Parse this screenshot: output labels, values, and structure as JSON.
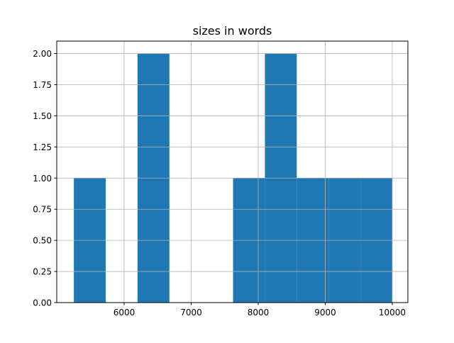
{
  "chart_data": {
    "type": "bar",
    "title": "sizes in words",
    "xlabel": "",
    "ylabel": "",
    "bin_edges": [
      5250,
      5725,
      6200,
      6675,
      7150,
      7625,
      8100,
      8575,
      9050,
      9525,
      10000
    ],
    "values": [
      1,
      0,
      2,
      0,
      0,
      1,
      2,
      1,
      1,
      1
    ],
    "xlim": [
      4995,
      10233
    ],
    "ylim": [
      0,
      2.1
    ],
    "xticks": [
      6000,
      7000,
      8000,
      9000,
      10000
    ],
    "xtick_labels": [
      "6000",
      "7000",
      "8000",
      "9000",
      "10000"
    ],
    "yticks": [
      0,
      0.25,
      0.5,
      0.75,
      1.0,
      1.25,
      1.5,
      1.75,
      2.0
    ],
    "ytick_labels": [
      "0.00",
      "0.25",
      "0.50",
      "0.75",
      "1.00",
      "1.25",
      "1.50",
      "1.75",
      "2.00"
    ],
    "grid": true,
    "bar_color": "#1f77b4",
    "grid_color": "#b0b0b0"
  }
}
